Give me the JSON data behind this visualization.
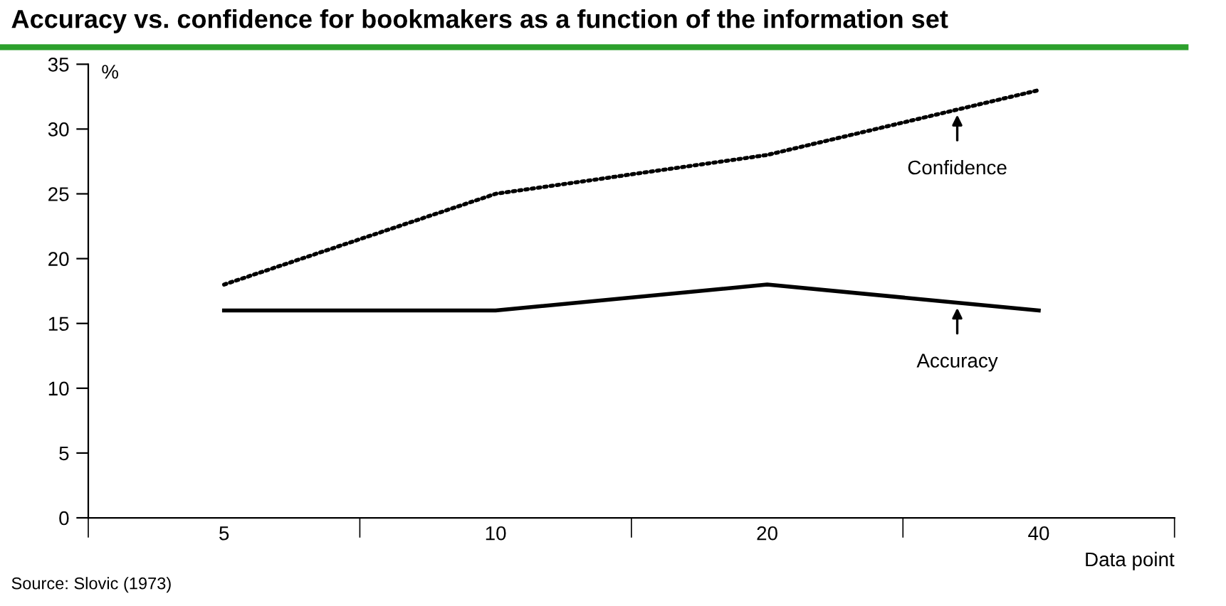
{
  "chart_data": {
    "type": "line",
    "title": "Accuracy vs. confidence for bookmakers as a function of the information set",
    "categories": [
      "5",
      "10",
      "20",
      "40"
    ],
    "series": [
      {
        "color": "#000000",
        "line_style": "dotted",
        "values": [
          18,
          25,
          28,
          33
        ]
      },
      {
        "color": "#000000",
        "line_style": "solid",
        "values": [
          16,
          16,
          18,
          16
        ]
      }
    ],
    "ylabel": "%",
    "xlabel": "Data point",
    "ylim": [
      0,
      35
    ],
    "yticks": [
      0,
      5,
      10,
      15,
      20,
      25,
      30,
      35
    ],
    "annotations": [
      {
        "text": "Confidence",
        "y": 31.5
      },
      {
        "text": "Accuracy",
        "y": 16.6
      },
      "Source: Slovic (1973)"
    ],
    "grid": false,
    "legend": false,
    "marker": "none"
  }
}
